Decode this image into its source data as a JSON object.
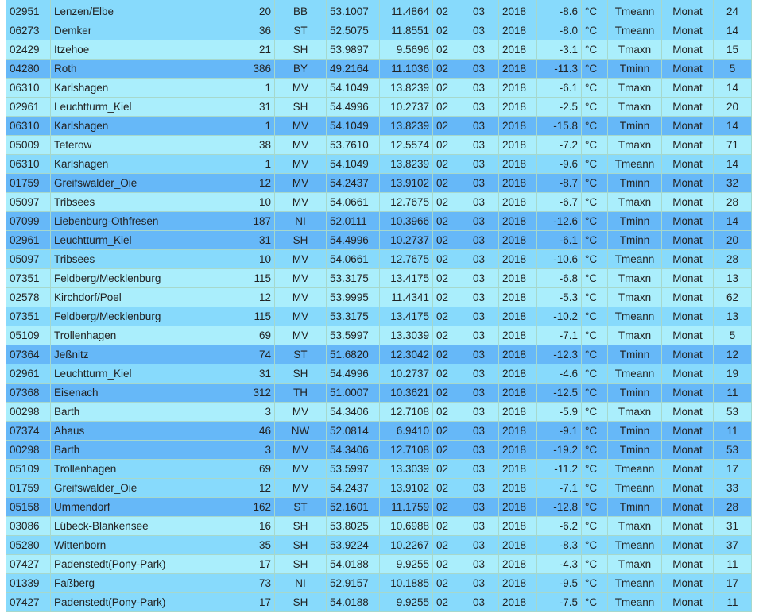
{
  "colors": {
    "Tmeann": "#87dafc",
    "Tmaxn": "#aaeefc",
    "Tminn": "#66b8f8"
  },
  "rows": [
    [
      "",
      "",
      "",
      "",
      "",
      "",
      "",
      "",
      "",
      "",
      "",
      "",
      "",
      ""
    ],
    [
      "02951",
      "Lenzen/Elbe",
      "20",
      "BB",
      "53.1007",
      "11.4864",
      "02",
      "03",
      "2018",
      "-8.6",
      "°C",
      "Tmeann",
      "Monat",
      "24"
    ],
    [
      "06273",
      "Demker",
      "36",
      "ST",
      "52.5075",
      "11.8551",
      "02",
      "03",
      "2018",
      "-8.0",
      "°C",
      "Tmeann",
      "Monat",
      "14"
    ],
    [
      "02429",
      "Itzehoe",
      "21",
      "SH",
      "53.9897",
      "9.5696",
      "02",
      "03",
      "2018",
      "-3.1",
      "°C",
      "Tmaxn",
      "Monat",
      "15"
    ],
    [
      "04280",
      "Roth",
      "386",
      "BY",
      "49.2164",
      "11.1036",
      "02",
      "03",
      "2018",
      "-11.3",
      "°C",
      "Tminn",
      "Monat",
      "5"
    ],
    [
      "06310",
      "Karlshagen",
      "1",
      "MV",
      "54.1049",
      "13.8239",
      "02",
      "03",
      "2018",
      "-6.1",
      "°C",
      "Tmaxn",
      "Monat",
      "14"
    ],
    [
      "02961",
      "Leuchtturm_Kiel",
      "31",
      "SH",
      "54.4996",
      "10.2737",
      "02",
      "03",
      "2018",
      "-2.5",
      "°C",
      "Tmaxn",
      "Monat",
      "20"
    ],
    [
      "06310",
      "Karlshagen",
      "1",
      "MV",
      "54.1049",
      "13.8239",
      "02",
      "03",
      "2018",
      "-15.8",
      "°C",
      "Tminn",
      "Monat",
      "14"
    ],
    [
      "05009",
      "Teterow",
      "38",
      "MV",
      "53.7610",
      "12.5574",
      "02",
      "03",
      "2018",
      "-7.2",
      "°C",
      "Tmaxn",
      "Monat",
      "71"
    ],
    [
      "06310",
      "Karlshagen",
      "1",
      "MV",
      "54.1049",
      "13.8239",
      "02",
      "03",
      "2018",
      "-9.6",
      "°C",
      "Tmeann",
      "Monat",
      "14"
    ],
    [
      "01759",
      "Greifswalder_Oie",
      "12",
      "MV",
      "54.2437",
      "13.9102",
      "02",
      "03",
      "2018",
      "-8.7",
      "°C",
      "Tminn",
      "Monat",
      "32"
    ],
    [
      "05097",
      "Tribsees",
      "10",
      "MV",
      "54.0661",
      "12.7675",
      "02",
      "03",
      "2018",
      "-6.7",
      "°C",
      "Tmaxn",
      "Monat",
      "28"
    ],
    [
      "07099",
      "Liebenburg-Othfresen",
      "187",
      "NI",
      "52.0111",
      "10.3966",
      "02",
      "03",
      "2018",
      "-12.6",
      "°C",
      "Tminn",
      "Monat",
      "14"
    ],
    [
      "02961",
      "Leuchtturm_Kiel",
      "31",
      "SH",
      "54.4996",
      "10.2737",
      "02",
      "03",
      "2018",
      "-6.1",
      "°C",
      "Tminn",
      "Monat",
      "20"
    ],
    [
      "05097",
      "Tribsees",
      "10",
      "MV",
      "54.0661",
      "12.7675",
      "02",
      "03",
      "2018",
      "-10.6",
      "°C",
      "Tmeann",
      "Monat",
      "28"
    ],
    [
      "07351",
      "Feldberg/Mecklenburg",
      "115",
      "MV",
      "53.3175",
      "13.4175",
      "02",
      "03",
      "2018",
      "-6.8",
      "°C",
      "Tmaxn",
      "Monat",
      "13"
    ],
    [
      "02578",
      "Kirchdorf/Poel",
      "12",
      "MV",
      "53.9995",
      "11.4341",
      "02",
      "03",
      "2018",
      "-5.3",
      "°C",
      "Tmaxn",
      "Monat",
      "62"
    ],
    [
      "07351",
      "Feldberg/Mecklenburg",
      "115",
      "MV",
      "53.3175",
      "13.4175",
      "02",
      "03",
      "2018",
      "-10.2",
      "°C",
      "Tmeann",
      "Monat",
      "13"
    ],
    [
      "05109",
      "Trollenhagen",
      "69",
      "MV",
      "53.5997",
      "13.3039",
      "02",
      "03",
      "2018",
      "-7.1",
      "°C",
      "Tmaxn",
      "Monat",
      "5"
    ],
    [
      "07364",
      "Jeßnitz",
      "74",
      "ST",
      "51.6820",
      "12.3042",
      "02",
      "03",
      "2018",
      "-12.3",
      "°C",
      "Tminn",
      "Monat",
      "12"
    ],
    [
      "02961",
      "Leuchtturm_Kiel",
      "31",
      "SH",
      "54.4996",
      "10.2737",
      "02",
      "03",
      "2018",
      "-4.6",
      "°C",
      "Tmeann",
      "Monat",
      "19"
    ],
    [
      "07368",
      "Eisenach",
      "312",
      "TH",
      "51.0007",
      "10.3621",
      "02",
      "03",
      "2018",
      "-12.5",
      "°C",
      "Tminn",
      "Monat",
      "11"
    ],
    [
      "00298",
      "Barth",
      "3",
      "MV",
      "54.3406",
      "12.7108",
      "02",
      "03",
      "2018",
      "-5.9",
      "°C",
      "Tmaxn",
      "Monat",
      "53"
    ],
    [
      "07374",
      "Ahaus",
      "46",
      "NW",
      "52.0814",
      "6.9410",
      "02",
      "03",
      "2018",
      "-9.1",
      "°C",
      "Tminn",
      "Monat",
      "11"
    ],
    [
      "00298",
      "Barth",
      "3",
      "MV",
      "54.3406",
      "12.7108",
      "02",
      "03",
      "2018",
      "-19.2",
      "°C",
      "Tminn",
      "Monat",
      "53"
    ],
    [
      "05109",
      "Trollenhagen",
      "69",
      "MV",
      "53.5997",
      "13.3039",
      "02",
      "03",
      "2018",
      "-11.2",
      "°C",
      "Tmeann",
      "Monat",
      "17"
    ],
    [
      "01759",
      "Greifswalder_Oie",
      "12",
      "MV",
      "54.2437",
      "13.9102",
      "02",
      "03",
      "2018",
      "-7.1",
      "°C",
      "Tmeann",
      "Monat",
      "33"
    ],
    [
      "05158",
      "Ummendorf",
      "162",
      "ST",
      "52.1601",
      "11.1759",
      "02",
      "03",
      "2018",
      "-12.8",
      "°C",
      "Tminn",
      "Monat",
      "28"
    ],
    [
      "03086",
      "Lübeck-Blankensee",
      "16",
      "SH",
      "53.8025",
      "10.6988",
      "02",
      "03",
      "2018",
      "-6.2",
      "°C",
      "Tmaxn",
      "Monat",
      "31"
    ],
    [
      "05280",
      "Wittenborn",
      "35",
      "SH",
      "53.9224",
      "10.2267",
      "02",
      "03",
      "2018",
      "-8.3",
      "°C",
      "Tmeann",
      "Monat",
      "37"
    ],
    [
      "07427",
      "Padenstedt(Pony-Park)",
      "17",
      "SH",
      "54.0188",
      "9.9255",
      "02",
      "03",
      "2018",
      "-4.3",
      "°C",
      "Tmaxn",
      "Monat",
      "11"
    ],
    [
      "01339",
      "Faßberg",
      "73",
      "NI",
      "52.9157",
      "10.1885",
      "02",
      "03",
      "2018",
      "-9.5",
      "°C",
      "Tmeann",
      "Monat",
      "17"
    ],
    [
      "07427",
      "Padenstedt(Pony-Park)",
      "17",
      "SH",
      "54.0188",
      "9.9255",
      "02",
      "03",
      "2018",
      "-7.5",
      "°C",
      "Tmeann",
      "Monat",
      "11"
    ]
  ]
}
